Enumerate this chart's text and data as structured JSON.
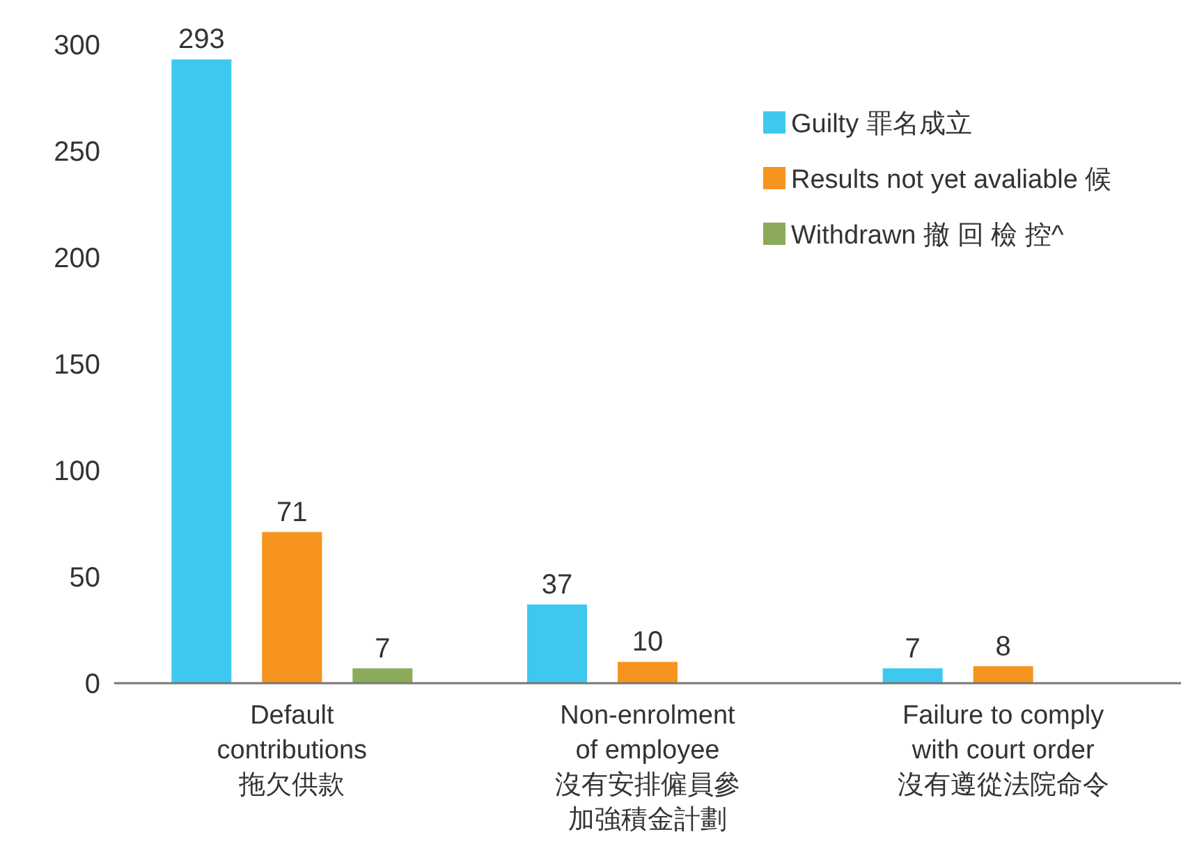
{
  "chart_data": {
    "type": "bar",
    "categories": [
      "Default\ncontributions\n拖欠供款",
      "Non-enrolment\nof employee\n沒有安排僱員參加強積金計劃",
      "Failure to comply\nwith court order\n沒有遵從法院命令"
    ],
    "series": [
      {
        "name": "Guilty 罪名成立",
        "color": "#3ec8f0",
        "values": [
          293,
          37,
          7
        ]
      },
      {
        "name": "Results not yet avaliable 候",
        "color": "#f7941d",
        "values": [
          71,
          10,
          8
        ]
      },
      {
        "name": "Withdrawn 撤 回 檢 控^",
        "color": "#8cab5a",
        "values": [
          7,
          null,
          null
        ]
      }
    ],
    "ylim": [
      0,
      300
    ],
    "yticks": [
      0,
      50,
      100,
      150,
      200,
      250,
      300
    ],
    "data_labels": true,
    "grid": false,
    "legend": "top right"
  }
}
